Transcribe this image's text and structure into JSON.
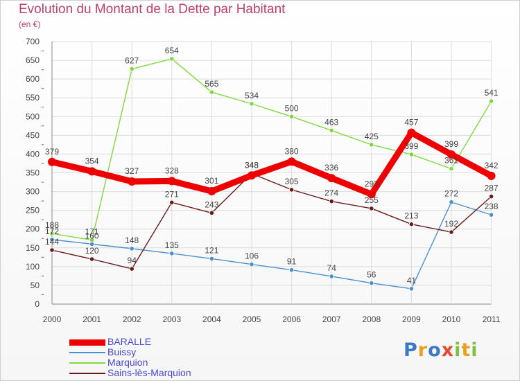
{
  "chart_data": {
    "type": "line",
    "title": "Evolution du Montant de la Dette par Habitant",
    "subtitle": "(en €)",
    "categories": [
      "2000",
      "2001",
      "2002",
      "2003",
      "2004",
      "2005",
      "2006",
      "2007",
      "2008",
      "2009",
      "2010",
      "2011"
    ],
    "ylim": [
      0,
      700
    ],
    "yticks": [
      "0",
      "50",
      "100",
      "150",
      "200",
      "250",
      "300",
      "350",
      "400",
      "450",
      "500",
      "550",
      "600",
      "650",
      "700"
    ],
    "grid": true,
    "legend_position": "bottom-left",
    "series": [
      {
        "name": "BARALLE",
        "color": "#ee0000",
        "values": [
          379,
          354,
          327,
          328,
          301,
          343,
          380,
          336,
          293,
          457,
          399,
          342
        ],
        "labels": [
          "379",
          "354",
          "327",
          "328",
          "301",
          "343",
          "380",
          "336",
          "293",
          "457",
          "399",
          "342"
        ]
      },
      {
        "name": "Buissy",
        "color": "#4a90d0",
        "values": [
          172,
          160,
          148,
          135,
          121,
          106,
          91,
          74,
          56,
          41,
          272,
          238
        ],
        "labels": [
          "172",
          "160",
          "148",
          "135",
          "121",
          "106",
          "91",
          "74",
          "56",
          "41",
          "272",
          "238"
        ]
      },
      {
        "name": "Marquion",
        "color": "#80d840",
        "values": [
          188,
          171,
          627,
          654,
          565,
          534,
          500,
          463,
          425,
          399,
          361,
          541
        ],
        "labels": [
          "188",
          "171",
          "627",
          "654",
          "565",
          "534",
          "500",
          "463",
          "425",
          "399",
          "361",
          "541"
        ]
      },
      {
        "name": "Sains-lès-Marquion",
        "color": "#6a1a1a",
        "values": [
          144,
          120,
          94,
          271,
          243,
          348,
          305,
          274,
          255,
          213,
          192,
          287
        ],
        "labels": [
          "144",
          "120",
          "94",
          "271",
          "243",
          "348",
          "305",
          "274",
          "255",
          "213",
          "192",
          "287"
        ]
      }
    ]
  },
  "logo": {
    "text": "Proxiti",
    "colors": [
      "#3a78c8",
      "#e8a020",
      "#3a78c8",
      "#e84830",
      "#80c040",
      "#e8a020",
      "#80c040"
    ]
  }
}
